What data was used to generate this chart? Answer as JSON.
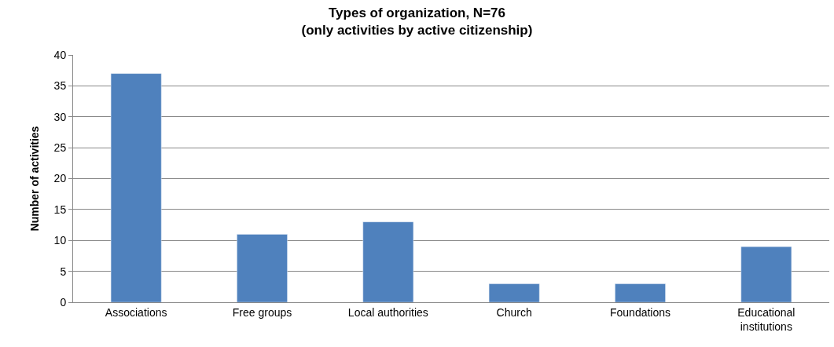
{
  "chart_data": {
    "type": "bar",
    "title": "Types of organization, N=76\n(only activities by active citizenship)",
    "ylabel": "Number of activities",
    "categories": [
      "Associations",
      "Free groups",
      "Local authorities",
      "Church",
      "Foundations",
      "Educational institutions"
    ],
    "values": [
      37,
      11,
      13,
      3,
      3,
      9
    ],
    "color": "#4f81bd",
    "ylim": [
      0,
      40
    ],
    "yticks": [
      0,
      5,
      10,
      15,
      20,
      25,
      30,
      35,
      40
    ],
    "grid": "y",
    "legend": false
  }
}
